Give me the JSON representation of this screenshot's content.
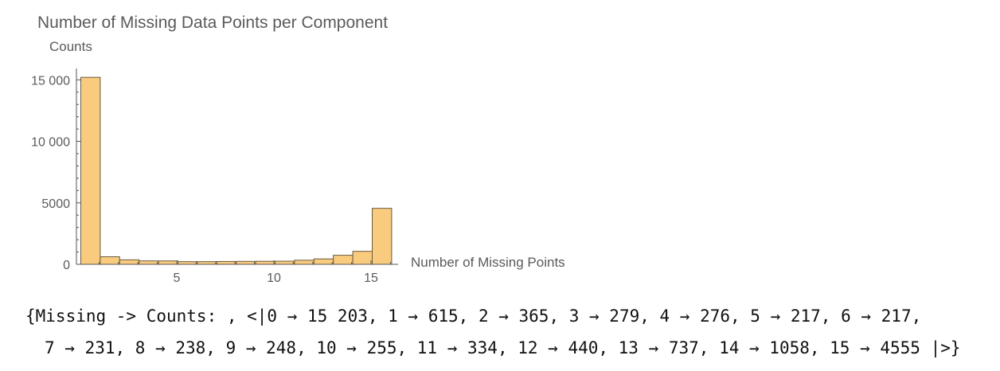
{
  "chart_data": {
    "type": "bar",
    "title": "Number of Missing Data Points per Component",
    "xlabel": "Number of Missing Points",
    "ylabel": "Counts",
    "bins": [
      [
        0,
        1
      ],
      [
        1,
        2
      ],
      [
        2,
        3
      ],
      [
        3,
        4
      ],
      [
        4,
        5
      ],
      [
        5,
        6
      ],
      [
        6,
        7
      ],
      [
        7,
        8
      ],
      [
        8,
        9
      ],
      [
        9,
        10
      ],
      [
        10,
        11
      ],
      [
        11,
        12
      ],
      [
        12,
        13
      ],
      [
        13,
        14
      ],
      [
        14,
        15
      ],
      [
        15,
        16
      ]
    ],
    "values": [
      15203,
      615,
      365,
      279,
      276,
      217,
      217,
      231,
      238,
      248,
      255,
      334,
      440,
      737,
      1058,
      4555
    ],
    "xlim": [
      0,
      16
    ],
    "ylim": [
      0,
      15800
    ],
    "xticks": [
      5,
      10,
      15
    ],
    "yticks": [
      0,
      5000,
      10000,
      15000
    ],
    "ytick_labels": [
      "0",
      "5000",
      "10 000",
      "15 000"
    ],
    "grid": false,
    "colors": {
      "bar_fill": "#F9CB7F",
      "bar_edge": "#6B5A3F",
      "axis": "#555555"
    }
  },
  "output": {
    "line1": "{Missing -> Counts: , <|0 → 15 203, 1 → 615, 2 → 365, 3 → 279, 4 → 276, 5 → 217, 6 → 217,",
    "line2": "7 → 231, 8 → 238, 9 → 248, 10 → 255, 11 → 334, 12 → 440, 13 → 737, 14 → 1058, 15 → 4555 |>}"
  }
}
